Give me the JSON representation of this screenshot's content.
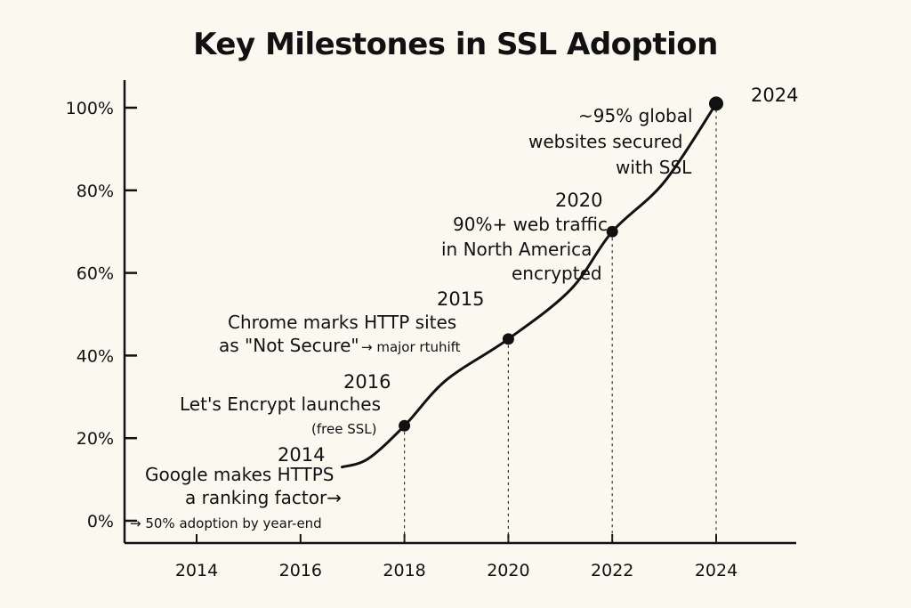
{
  "chart_data": {
    "type": "line",
    "title": "Key Milestones in SSL Adoption",
    "xlabel": "",
    "ylabel": "",
    "xlim": [
      2013.2,
      2025.0
    ],
    "ylim": [
      0,
      100
    ],
    "x_ticks": [
      2014,
      2016,
      2018,
      2020,
      2022,
      2024
    ],
    "y_ticks": [
      {
        "value": 0,
        "label": "0%"
      },
      {
        "value": 20,
        "label": "20%"
      },
      {
        "value": 40,
        "label": "40%"
      },
      {
        "value": 60,
        "label": "60%"
      },
      {
        "value": 80,
        "label": "80%"
      },
      {
        "value": 100,
        "label": "100%"
      }
    ],
    "grid": false,
    "series": [
      {
        "points": [
          {
            "x": 2016.8,
            "y": 13
          },
          {
            "x": 2017.3,
            "y": 15
          },
          {
            "x": 2018.0,
            "y": 23
          },
          {
            "x": 2018.8,
            "y": 34
          },
          {
            "x": 2020.0,
            "y": 44
          },
          {
            "x": 2021.2,
            "y": 56
          },
          {
            "x": 2022.0,
            "y": 70
          },
          {
            "x": 2023.0,
            "y": 82
          },
          {
            "x": 2024.0,
            "y": 101
          }
        ]
      }
    ],
    "markers": [
      {
        "x": 2018.0,
        "y": 23
      },
      {
        "x": 2020.0,
        "y": 44
      },
      {
        "x": 2022.0,
        "y": 70
      },
      {
        "x": 2024.0,
        "y": 101
      }
    ],
    "annotations": [
      {
        "year": "2014",
        "lines": [
          "Google makes HTTPS",
          "a ranking factor→"
        ],
        "extra": "→ 50% adoption by year-end"
      },
      {
        "year": "2016",
        "lines": [
          "Let's Encrypt launches",
          "(free SSL)"
        ]
      },
      {
        "year": "2015",
        "lines": [
          "Chrome marks HTTP sites",
          "as \"Not Secure\""
        ],
        "extra": "→ major rtuhift"
      },
      {
        "year": "2020",
        "lines": [
          "90%+ web traffic",
          "in North America",
          "encrypted"
        ]
      },
      {
        "year": "2024",
        "lines": [
          "~95% global",
          "websites secured",
          "with SSL"
        ]
      }
    ]
  }
}
